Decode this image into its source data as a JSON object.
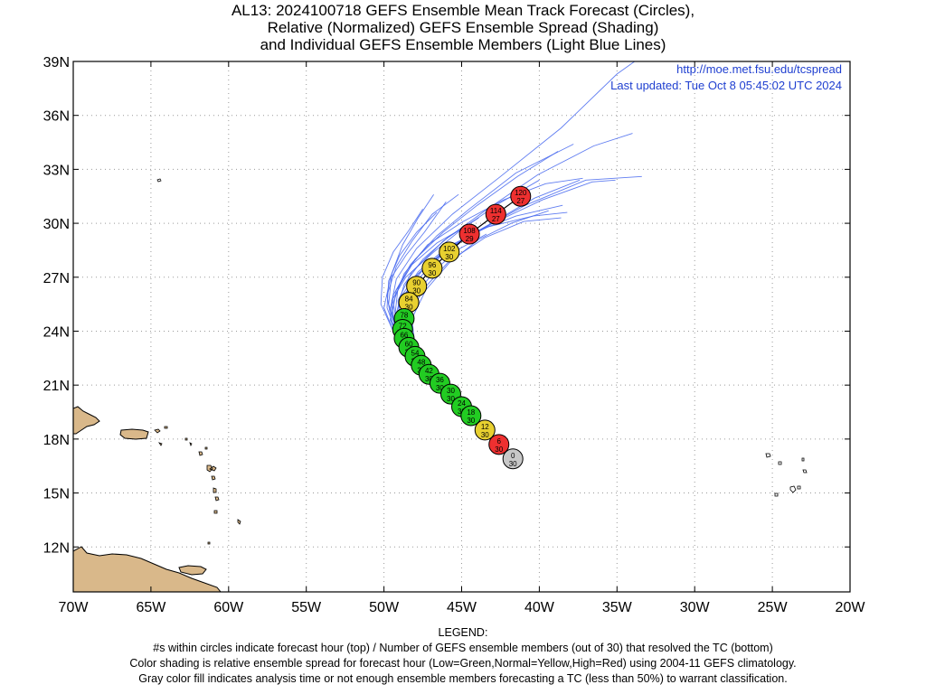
{
  "header": {
    "line1": "AL13: 2024100718 GEFS Ensemble Mean Track Forecast (Circles),",
    "line2": "Relative (Normalized) GEFS Ensemble Spread (Shading)",
    "line3": "and Individual GEFS Ensemble Members (Light Blue Lines)"
  },
  "credits": {
    "url": "http://moe.met.fsu.edu/tcspread",
    "updated": "Last updated: Tue Oct 8 05:45:02 UTC 2024"
  },
  "legend": {
    "heading": "LEGEND:",
    "line1": "#s within circles indicate forecast hour (top) / Number of GEFS ensemble members (out of 30) that resolved the TC (bottom)",
    "line2": "Color shading is relative ensemble spread for forecast hour (Low=Green,Normal=Yellow,High=Red) using 2004-11 GEFS climatology.",
    "line3": "Gray color fill indicates analysis time or not enough ensemble members forecasting a TC (less than 50%) to warrant classification."
  },
  "colors": {
    "gray": "#c8c8c8",
    "green": "#22cc22",
    "yellow": "#e8d030",
    "red": "#ee3030",
    "member_line": "#4466ee",
    "land": "#d9b88a",
    "credit_text": "#1f3fd0"
  },
  "chart_data": {
    "type": "scatter",
    "xlim": [
      -70,
      -20
    ],
    "ylim": [
      9.5,
      39
    ],
    "x_ticks": [
      {
        "value": -70,
        "label": "70W"
      },
      {
        "value": -65,
        "label": "65W"
      },
      {
        "value": -60,
        "label": "60W"
      },
      {
        "value": -55,
        "label": "55W"
      },
      {
        "value": -50,
        "label": "50W"
      },
      {
        "value": -45,
        "label": "45W"
      },
      {
        "value": -40,
        "label": "40W"
      },
      {
        "value": -35,
        "label": "35W"
      },
      {
        "value": -30,
        "label": "30W"
      },
      {
        "value": -25,
        "label": "25W"
      },
      {
        "value": -20,
        "label": "20W"
      }
    ],
    "y_ticks": [
      {
        "value": 12,
        "label": "12N"
      },
      {
        "value": 15,
        "label": "15N"
      },
      {
        "value": 18,
        "label": "18N"
      },
      {
        "value": 21,
        "label": "21N"
      },
      {
        "value": 24,
        "label": "24N"
      },
      {
        "value": 27,
        "label": "27N"
      },
      {
        "value": 30,
        "label": "30N"
      },
      {
        "value": 33,
        "label": "33N"
      },
      {
        "value": 36,
        "label": "36N"
      },
      {
        "value": 39,
        "label": "39N"
      }
    ],
    "grid": true,
    "mean_track": [
      {
        "hour": "0",
        "members": "30",
        "lon": -41.7,
        "lat": 16.9,
        "spread": "gray"
      },
      {
        "hour": "6",
        "members": "30",
        "lon": -42.6,
        "lat": 17.7,
        "spread": "red"
      },
      {
        "hour": "12",
        "members": "30",
        "lon": -43.5,
        "lat": 18.5,
        "spread": "yellow"
      },
      {
        "hour": "18",
        "members": "30",
        "lon": -44.4,
        "lat": 19.3,
        "spread": "green"
      },
      {
        "hour": "24",
        "members": "30",
        "lon": -45.0,
        "lat": 19.8,
        "spread": "green"
      },
      {
        "hour": "30",
        "members": "30",
        "lon": -45.7,
        "lat": 20.5,
        "spread": "green"
      },
      {
        "hour": "36",
        "members": "30",
        "lon": -46.4,
        "lat": 21.1,
        "spread": "green"
      },
      {
        "hour": "42",
        "members": "30",
        "lon": -47.1,
        "lat": 21.6,
        "spread": "green"
      },
      {
        "hour": "48",
        "members": "30",
        "lon": -47.6,
        "lat": 22.1,
        "spread": "green"
      },
      {
        "hour": "54",
        "members": "30",
        "lon": -48.0,
        "lat": 22.6,
        "spread": "green"
      },
      {
        "hour": "60",
        "members": "30",
        "lon": -48.4,
        "lat": 23.1,
        "spread": "green"
      },
      {
        "hour": "66",
        "members": "30",
        "lon": -48.7,
        "lat": 23.6,
        "spread": "green"
      },
      {
        "hour": "72",
        "members": "30",
        "lon": -48.8,
        "lat": 24.1,
        "spread": "green"
      },
      {
        "hour": "78",
        "members": "30",
        "lon": -48.7,
        "lat": 24.7,
        "spread": "green"
      },
      {
        "hour": "84",
        "members": "30",
        "lon": -48.4,
        "lat": 25.6,
        "spread": "yellow"
      },
      {
        "hour": "90",
        "members": "30",
        "lon": -47.9,
        "lat": 26.5,
        "spread": "yellow"
      },
      {
        "hour": "96",
        "members": "30",
        "lon": -46.9,
        "lat": 27.5,
        "spread": "yellow"
      },
      {
        "hour": "102",
        "members": "30",
        "lon": -45.8,
        "lat": 28.4,
        "spread": "yellow"
      },
      {
        "hour": "108",
        "members": "29",
        "lon": -44.5,
        "lat": 29.4,
        "spread": "red"
      },
      {
        "hour": "114",
        "members": "27",
        "lon": -42.8,
        "lat": 30.5,
        "spread": "red"
      },
      {
        "hour": "120",
        "members": "27",
        "lon": -41.2,
        "lat": 31.5,
        "spread": "red"
      }
    ],
    "member_tracks": [
      [
        [
          -41.6,
          16.9
        ],
        [
          -43.5,
          18.3
        ],
        [
          -45.4,
          20.0
        ],
        [
          -47.3,
          21.8
        ],
        [
          -48.7,
          23.3
        ],
        [
          -49.6,
          24.6
        ],
        [
          -49.4,
          26.0
        ],
        [
          -48.3,
          27.7
        ],
        [
          -46.6,
          29.3
        ],
        [
          -44.5,
          30.8
        ],
        [
          -41.5,
          32.8
        ],
        [
          -37.8,
          34.4
        ]
      ],
      [
        [
          -41.6,
          16.9
        ],
        [
          -43.6,
          18.6
        ],
        [
          -45.7,
          20.6
        ],
        [
          -47.6,
          22.4
        ],
        [
          -48.7,
          23.8
        ],
        [
          -48.8,
          25.3
        ],
        [
          -47.8,
          26.9
        ],
        [
          -46.2,
          28.3
        ],
        [
          -44.2,
          29.5
        ],
        [
          -41.5,
          30.4
        ],
        [
          -38.5,
          31.0
        ]
      ],
      [
        [
          -41.6,
          16.9
        ],
        [
          -43.4,
          18.4
        ],
        [
          -45.3,
          20.1
        ],
        [
          -47.2,
          21.8
        ],
        [
          -48.7,
          23.4
        ],
        [
          -49.2,
          25.0
        ],
        [
          -48.7,
          26.6
        ],
        [
          -47.5,
          28.0
        ],
        [
          -45.9,
          29.2
        ],
        [
          -43.9,
          30.3
        ]
      ],
      [
        [
          -41.6,
          16.9
        ],
        [
          -43.7,
          18.7
        ],
        [
          -46.0,
          20.8
        ],
        [
          -48.0,
          22.7
        ],
        [
          -49.0,
          24.3
        ],
        [
          -48.8,
          25.9
        ],
        [
          -47.6,
          27.3
        ],
        [
          -45.9,
          28.6
        ],
        [
          -43.3,
          29.9
        ],
        [
          -40.3,
          31.4
        ],
        [
          -37.4,
          32.4
        ]
      ],
      [
        [
          -41.6,
          16.9
        ],
        [
          -43.5,
          18.5
        ],
        [
          -45.6,
          20.3
        ],
        [
          -47.8,
          22.2
        ],
        [
          -49.3,
          23.8
        ],
        [
          -50.0,
          25.3
        ],
        [
          -49.6,
          26.9
        ],
        [
          -48.6,
          28.2
        ],
        [
          -47.4,
          29.5
        ],
        [
          -46.0,
          31.2
        ]
      ],
      [
        [
          -41.6,
          16.9
        ],
        [
          -43.5,
          18.6
        ],
        [
          -45.6,
          20.5
        ],
        [
          -47.7,
          22.4
        ],
        [
          -48.9,
          24.0
        ],
        [
          -49.1,
          25.7
        ],
        [
          -48.2,
          27.3
        ],
        [
          -46.2,
          29.0
        ],
        [
          -43.5,
          30.7
        ],
        [
          -40.1,
          32.7
        ],
        [
          -36.5,
          34.3
        ],
        [
          -34.0,
          35.0
        ]
      ],
      [
        [
          -41.6,
          16.9
        ],
        [
          -43.4,
          18.5
        ],
        [
          -45.3,
          20.2
        ],
        [
          -47.1,
          21.8
        ],
        [
          -48.3,
          23.3
        ],
        [
          -48.4,
          24.9
        ],
        [
          -47.4,
          26.4
        ],
        [
          -45.8,
          27.9
        ],
        [
          -43.5,
          29.2
        ],
        [
          -41.0,
          30.1
        ],
        [
          -38.6,
          30.3
        ]
      ],
      [
        [
          -41.6,
          16.9
        ],
        [
          -43.6,
          18.7
        ],
        [
          -45.8,
          20.7
        ],
        [
          -47.9,
          22.6
        ],
        [
          -49.3,
          24.2
        ],
        [
          -49.5,
          25.7
        ],
        [
          -48.6,
          27.0
        ],
        [
          -46.8,
          28.4
        ],
        [
          -44.8,
          29.8
        ],
        [
          -42.6,
          31.1
        ],
        [
          -40.0,
          32.4
        ]
      ],
      [
        [
          -41.6,
          16.9
        ],
        [
          -43.3,
          18.3
        ],
        [
          -45.1,
          19.9
        ],
        [
          -46.9,
          21.5
        ],
        [
          -48.3,
          23.0
        ],
        [
          -48.6,
          24.6
        ],
        [
          -47.9,
          26.1
        ],
        [
          -46.6,
          27.5
        ],
        [
          -45.1,
          28.6
        ],
        [
          -43.4,
          29.4
        ]
      ],
      [
        [
          -41.6,
          16.9
        ],
        [
          -43.7,
          18.8
        ],
        [
          -46.1,
          20.9
        ],
        [
          -48.2,
          22.8
        ],
        [
          -49.5,
          24.4
        ],
        [
          -49.8,
          26.0
        ],
        [
          -49.2,
          27.6
        ],
        [
          -48.2,
          29.0
        ],
        [
          -46.9,
          30.5
        ],
        [
          -45.2,
          31.6
        ]
      ],
      [
        [
          -41.6,
          16.9
        ],
        [
          -43.5,
          18.6
        ],
        [
          -45.6,
          20.4
        ],
        [
          -47.6,
          22.2
        ],
        [
          -48.8,
          23.9
        ],
        [
          -48.9,
          25.6
        ],
        [
          -47.9,
          27.1
        ],
        [
          -46.2,
          28.4
        ],
        [
          -43.7,
          29.7
        ],
        [
          -40.9,
          31.0
        ],
        [
          -37.0,
          32.4
        ],
        [
          -33.4,
          32.6
        ]
      ],
      [
        [
          -41.6,
          16.9
        ],
        [
          -43.4,
          18.4
        ],
        [
          -45.3,
          20.1
        ],
        [
          -47.2,
          21.8
        ],
        [
          -48.7,
          23.3
        ],
        [
          -49.5,
          24.8
        ],
        [
          -49.2,
          26.3
        ],
        [
          -48.2,
          27.7
        ],
        [
          -46.6,
          28.9
        ],
        [
          -44.8,
          29.8
        ]
      ],
      [
        [
          -41.6,
          16.9
        ],
        [
          -43.5,
          18.5
        ],
        [
          -45.5,
          20.3
        ],
        [
          -47.5,
          22.1
        ],
        [
          -49.0,
          23.8
        ],
        [
          -49.7,
          25.5
        ],
        [
          -49.5,
          27.2
        ],
        [
          -48.8,
          28.8
        ],
        [
          -47.8,
          30.3
        ],
        [
          -46.8,
          31.6
        ]
      ],
      [
        [
          -41.6,
          16.9
        ],
        [
          -43.6,
          18.7
        ],
        [
          -45.9,
          20.7
        ],
        [
          -48.0,
          22.6
        ],
        [
          -49.1,
          24.2
        ],
        [
          -49.0,
          25.8
        ],
        [
          -47.8,
          27.3
        ],
        [
          -45.9,
          28.7
        ],
        [
          -43.3,
          29.8
        ],
        [
          -40.4,
          30.4
        ],
        [
          -38.2,
          30.6
        ]
      ],
      [
        [
          -41.6,
          16.9
        ],
        [
          -43.4,
          18.5
        ],
        [
          -45.4,
          20.2
        ],
        [
          -47.5,
          21.9
        ],
        [
          -49.0,
          23.5
        ],
        [
          -49.6,
          25.2
        ],
        [
          -49.2,
          26.9
        ],
        [
          -47.9,
          28.6
        ],
        [
          -45.6,
          30.5
        ],
        [
          -42.5,
          32.6
        ],
        [
          -38.6,
          35.3
        ],
        [
          -35.0,
          38.3
        ],
        [
          -33.7,
          39.1
        ]
      ],
      [
        [
          -41.6,
          16.9
        ],
        [
          -43.5,
          18.6
        ],
        [
          -45.7,
          20.5
        ],
        [
          -47.8,
          22.4
        ],
        [
          -49.1,
          24.0
        ],
        [
          -49.4,
          25.6
        ],
        [
          -48.7,
          27.2
        ],
        [
          -47.2,
          28.8
        ],
        [
          -44.9,
          30.1
        ],
        [
          -42.3,
          31.3
        ],
        [
          -39.6,
          32.2
        ],
        [
          -37.2,
          32.5
        ]
      ],
      [
        [
          -41.6,
          16.9
        ],
        [
          -43.6,
          18.6
        ],
        [
          -45.8,
          20.5
        ],
        [
          -47.9,
          22.4
        ],
        [
          -49.4,
          24.0
        ],
        [
          -50.2,
          25.5
        ],
        [
          -50.1,
          27.0
        ],
        [
          -49.4,
          28.4
        ],
        [
          -48.4,
          29.6
        ],
        [
          -47.5,
          30.8
        ]
      ],
      [
        [
          -41.6,
          16.9
        ],
        [
          -43.4,
          18.4
        ],
        [
          -45.2,
          20.0
        ],
        [
          -46.9,
          21.6
        ],
        [
          -48.0,
          23.1
        ],
        [
          -48.2,
          24.7
        ],
        [
          -47.3,
          26.3
        ],
        [
          -45.8,
          27.8
        ],
        [
          -43.9,
          29.1
        ],
        [
          -41.8,
          30.0
        ],
        [
          -39.4,
          30.7
        ]
      ],
      [
        [
          -41.6,
          16.9
        ],
        [
          -43.5,
          18.5
        ],
        [
          -45.5,
          20.3
        ],
        [
          -47.6,
          22.1
        ],
        [
          -49.1,
          23.7
        ],
        [
          -49.8,
          25.3
        ],
        [
          -49.7,
          26.8
        ],
        [
          -49.0,
          28.2
        ],
        [
          -47.9,
          29.5
        ],
        [
          -46.6,
          30.6
        ]
      ],
      [
        [
          -41.6,
          16.9
        ],
        [
          -43.6,
          18.7
        ],
        [
          -45.8,
          20.6
        ],
        [
          -47.8,
          22.5
        ],
        [
          -48.9,
          24.1
        ],
        [
          -48.9,
          25.7
        ],
        [
          -47.8,
          27.2
        ],
        [
          -45.8,
          28.6
        ],
        [
          -43.0,
          30.0
        ],
        [
          -39.8,
          31.3
        ],
        [
          -36.6,
          32.3
        ],
        [
          -35.1,
          32.4
        ]
      ],
      [
        [
          -41.6,
          16.9
        ],
        [
          -43.3,
          18.3
        ],
        [
          -45.1,
          19.9
        ],
        [
          -47.0,
          21.6
        ],
        [
          -48.5,
          23.2
        ],
        [
          -49.3,
          24.8
        ],
        [
          -49.1,
          26.4
        ],
        [
          -48.0,
          28.0
        ],
        [
          -46.2,
          29.5
        ],
        [
          -44.0,
          31.0
        ],
        [
          -41.4,
          32.6
        ],
        [
          -38.8,
          34.0
        ]
      ]
    ]
  }
}
